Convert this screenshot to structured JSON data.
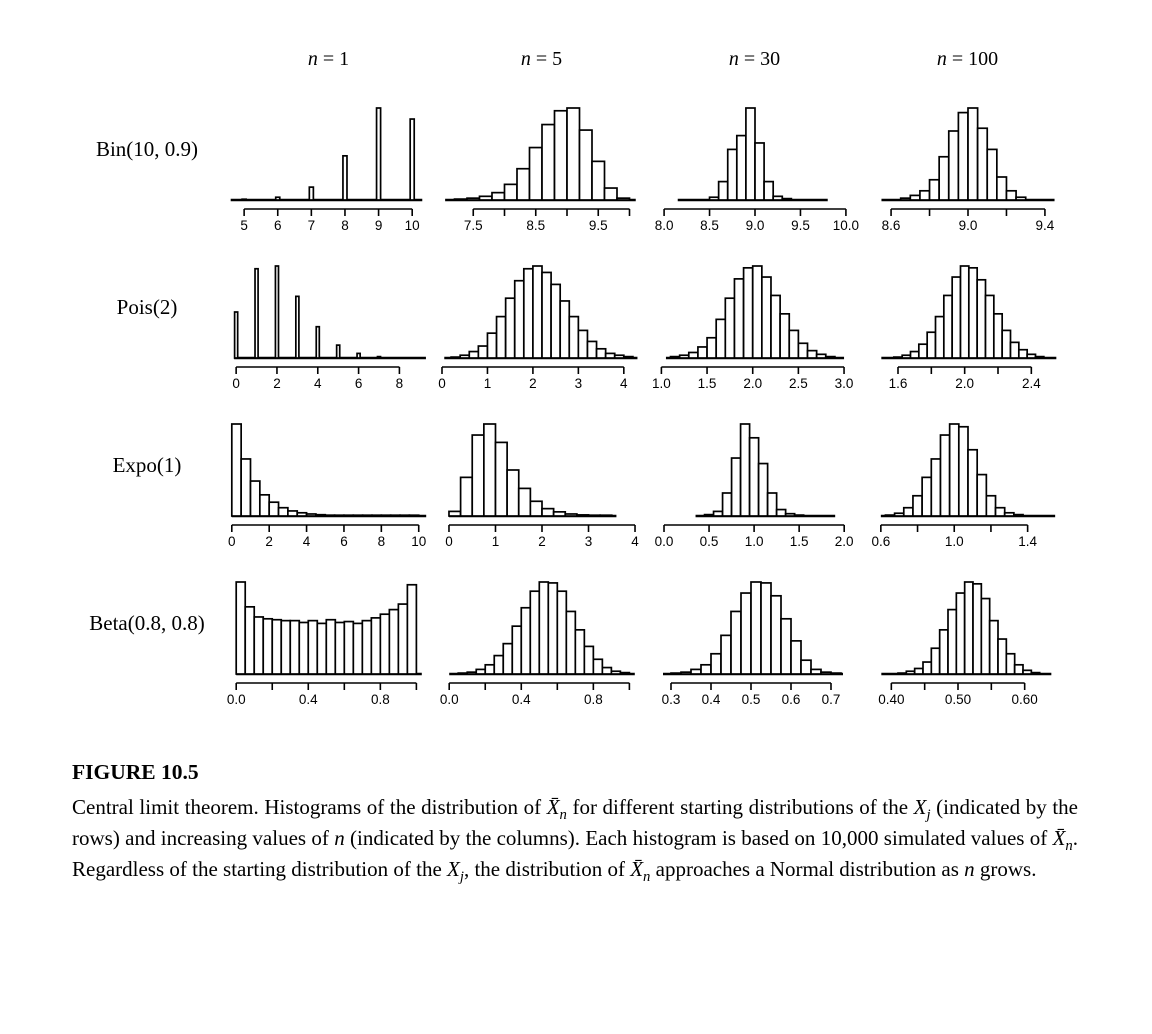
{
  "colors": {
    "ink": "#000000",
    "background": "#ffffff"
  },
  "figure": {
    "columns": [
      {
        "var": "n",
        "rest": "= 1"
      },
      {
        "var": "n",
        "rest": "= 5"
      },
      {
        "var": "n",
        "rest": "= 30"
      },
      {
        "var": "n",
        "rest": "= 100"
      }
    ],
    "rows": [
      {
        "label": "Bin(10, 0.9)"
      },
      {
        "label": "Pois(2)"
      },
      {
        "label": "Expo(1)"
      },
      {
        "label": "Beta(0.8, 0.8)"
      }
    ],
    "heights_note": "bar heights are relative frequencies scaled so the tallest bar in each panel equals 1"
  },
  "chart_data": [
    {
      "type": "bar",
      "row": "Bin(10, 0.9)",
      "col": "n = 1",
      "x0": 4.94,
      "stride": 1,
      "bw": 0.12,
      "heights": [
        0.005,
        0.03,
        0.14,
        0.48,
        1.0,
        0.88
      ],
      "baseline": [
        4.6,
        10.3
      ],
      "xlim": [
        4.55,
        10.5
      ],
      "ticks": [
        5,
        6,
        7,
        8,
        9,
        10
      ],
      "tick_labels": [
        "5",
        "6",
        "7",
        "8",
        "9",
        "10"
      ]
    },
    {
      "type": "bar",
      "row": "Bin(10, 0.9)",
      "col": "n = 5",
      "x0": 7.2,
      "bw": 0.2,
      "heights": [
        0.01,
        0.02,
        0.04,
        0.08,
        0.17,
        0.34,
        0.57,
        0.82,
        0.97,
        1.0,
        0.76,
        0.42,
        0.13,
        0.02
      ],
      "baseline": [
        7.05,
        10.1
      ],
      "xlim": [
        7.0,
        10.2
      ],
      "ticks": [
        7.5,
        8.0,
        8.5,
        9.0,
        9.5,
        10.0
      ],
      "tick_labels": [
        "7.5",
        "",
        "8.5",
        "",
        "9.5",
        ""
      ]
    },
    {
      "type": "bar",
      "row": "Bin(10, 0.9)",
      "col": "n = 30",
      "x0": 8.5,
      "bw": 0.1,
      "heights": [
        0.03,
        0.2,
        0.55,
        0.7,
        1.0,
        0.62,
        0.2,
        0.04,
        0.015
      ],
      "baseline": [
        8.15,
        9.8
      ],
      "xlim": [
        7.9,
        10.1
      ],
      "ticks": [
        8.0,
        8.5,
        9.0,
        9.5,
        10.0
      ],
      "tick_labels": [
        "8.0",
        "8.5",
        "9.0",
        "9.5",
        "10.0"
      ]
    },
    {
      "type": "bar",
      "row": "Bin(10, 0.9)",
      "col": "n = 100",
      "x0": 8.65,
      "bw": 0.05,
      "heights": [
        0.02,
        0.05,
        0.1,
        0.22,
        0.47,
        0.75,
        0.95,
        1.0,
        0.78,
        0.55,
        0.25,
        0.1,
        0.03
      ],
      "baseline": [
        8.55,
        9.45
      ],
      "xlim": [
        8.48,
        9.52
      ],
      "ticks": [
        8.6,
        8.8,
        9.0,
        9.2,
        9.4
      ],
      "tick_labels": [
        "8.6",
        "",
        "9.0",
        "",
        "9.4"
      ]
    },
    {
      "type": "bar",
      "row": "Pois(2)",
      "col": "n = 1",
      "x0": -0.075,
      "stride": 1,
      "bw": 0.15,
      "heights": [
        0.5,
        0.97,
        1.0,
        0.67,
        0.34,
        0.14,
        0.05,
        0.015
      ],
      "baseline": [
        -0.1,
        9.3
      ],
      "xlim": [
        -0.35,
        9.45
      ],
      "ticks": [
        0,
        2,
        4,
        6,
        8
      ],
      "tick_labels": [
        "0",
        "2",
        "4",
        "6",
        "8"
      ]
    },
    {
      "type": "bar",
      "row": "Pois(2)",
      "col": "n = 5",
      "x0": 0.2,
      "bw": 0.2,
      "heights": [
        0.01,
        0.03,
        0.07,
        0.13,
        0.27,
        0.45,
        0.65,
        0.84,
        0.97,
        1.0,
        0.93,
        0.8,
        0.62,
        0.45,
        0.3,
        0.18,
        0.1,
        0.05,
        0.03,
        0.015
      ],
      "baseline": [
        0.05,
        4.3
      ],
      "xlim": [
        0,
        4.4
      ],
      "ticks": [
        0,
        1,
        2,
        3,
        4
      ],
      "tick_labels": [
        "0",
        "1",
        "2",
        "3",
        "4"
      ]
    },
    {
      "type": "bar",
      "row": "Pois(2)",
      "col": "n = 30",
      "x0": 1.1,
      "bw": 0.1,
      "heights": [
        0.015,
        0.03,
        0.06,
        0.12,
        0.22,
        0.42,
        0.65,
        0.86,
        0.98,
        1.0,
        0.88,
        0.68,
        0.48,
        0.3,
        0.16,
        0.08,
        0.04,
        0.015
      ],
      "baseline": [
        1.05,
        3.0
      ],
      "xlim": [
        0.93,
        3.12
      ],
      "ticks": [
        1.0,
        1.5,
        2.0,
        2.5,
        3.0
      ],
      "tick_labels": [
        "1.0",
        "1.5",
        "2.0",
        "2.5",
        "3.0"
      ]
    },
    {
      "type": "bar",
      "row": "Pois(2)",
      "col": "n = 100",
      "x0": 1.575,
      "bw": 0.05,
      "heights": [
        0.01,
        0.03,
        0.07,
        0.15,
        0.28,
        0.45,
        0.68,
        0.88,
        1.0,
        0.98,
        0.85,
        0.68,
        0.48,
        0.3,
        0.17,
        0.09,
        0.04,
        0.015
      ],
      "baseline": [
        1.5,
        2.55
      ],
      "xlim": [
        1.42,
        2.62
      ],
      "ticks": [
        1.6,
        1.8,
        2.0,
        2.2,
        2.4
      ],
      "tick_labels": [
        "1.6",
        "",
        "2.0",
        "",
        "2.4"
      ]
    },
    {
      "type": "bar",
      "row": "Expo(1)",
      "col": "n = 1",
      "x0": 0,
      "bw": 0.5,
      "heights": [
        1.0,
        0.62,
        0.38,
        0.23,
        0.15,
        0.09,
        0.055,
        0.035,
        0.022,
        0.014,
        0.009,
        0.006,
        0.004,
        0.003,
        0.002,
        0.002,
        0.001,
        0.001,
        0.001,
        0.001
      ],
      "baseline": [
        0,
        10.4
      ],
      "xlim": [
        -0.15,
        10.55
      ],
      "ticks": [
        0,
        2,
        4,
        6,
        8,
        10
      ],
      "tick_labels": [
        "0",
        "2",
        "4",
        "6",
        "8",
        "10"
      ]
    },
    {
      "type": "bar",
      "row": "Expo(1)",
      "col": "n = 5",
      "x0": 0,
      "bw": 0.25,
      "heights": [
        0.05,
        0.42,
        0.88,
        1.0,
        0.8,
        0.5,
        0.3,
        0.16,
        0.08,
        0.045,
        0.022,
        0.012,
        0.006,
        0.003
      ],
      "baseline": [
        0,
        3.6
      ],
      "xlim": [
        -0.15,
        4.15
      ],
      "ticks": [
        0,
        1,
        2,
        3,
        4
      ],
      "tick_labels": [
        "0",
        "1",
        "2",
        "3",
        "4"
      ]
    },
    {
      "type": "bar",
      "row": "Expo(1)",
      "col": "n = 30",
      "x0": 0.45,
      "bw": 0.1,
      "heights": [
        0.015,
        0.05,
        0.25,
        0.63,
        1.0,
        0.85,
        0.57,
        0.25,
        0.07,
        0.025,
        0.01
      ],
      "baseline": [
        0.35,
        1.9
      ],
      "xlim": [
        -0.1,
        2.12
      ],
      "ticks": [
        0.0,
        0.5,
        1.0,
        1.5,
        2.0
      ],
      "tick_labels": [
        "0.0",
        "0.5",
        "1.0",
        "1.5",
        "2.0"
      ]
    },
    {
      "type": "bar",
      "row": "Expo(1)",
      "col": "n = 100",
      "x0": 0.625,
      "bw": 0.05,
      "heights": [
        0.01,
        0.03,
        0.09,
        0.22,
        0.42,
        0.62,
        0.88,
        1.0,
        0.97,
        0.72,
        0.45,
        0.22,
        0.09,
        0.035,
        0.015
      ],
      "baseline": [
        0.6,
        1.55
      ],
      "xlim": [
        0.53,
        1.62
      ],
      "ticks": [
        0.6,
        0.8,
        1.0,
        1.2,
        1.4
      ],
      "tick_labels": [
        "0.6",
        "",
        "1.0",
        "",
        "1.4"
      ]
    },
    {
      "type": "bar",
      "row": "Beta(0.8, 0.8)",
      "col": "n = 1",
      "x0": 0,
      "bw": 0.05,
      "heights": [
        1.0,
        0.73,
        0.62,
        0.6,
        0.59,
        0.58,
        0.58,
        0.56,
        0.58,
        0.55,
        0.59,
        0.56,
        0.57,
        0.55,
        0.58,
        0.61,
        0.65,
        0.7,
        0.76,
        0.97
      ],
      "baseline": [
        0,
        1.03
      ],
      "xlim": [
        -0.04,
        1.07
      ],
      "ticks": [
        0.0,
        0.2,
        0.4,
        0.6,
        0.8,
        1.0
      ],
      "tick_labels": [
        "0.0",
        "",
        "0.4",
        "",
        "0.8",
        ""
      ]
    },
    {
      "type": "bar",
      "row": "Beta(0.8, 0.8)",
      "col": "n = 5",
      "x0": 0.05,
      "bw": 0.05,
      "heights": [
        0.01,
        0.02,
        0.05,
        0.1,
        0.2,
        0.33,
        0.52,
        0.72,
        0.9,
        1.0,
        0.99,
        0.9,
        0.68,
        0.48,
        0.3,
        0.16,
        0.07,
        0.03,
        0.015
      ],
      "baseline": [
        0,
        1.03
      ],
      "xlim": [
        -0.04,
        1.07
      ],
      "ticks": [
        0.0,
        0.2,
        0.4,
        0.6,
        0.8,
        1.0
      ],
      "tick_labels": [
        "0.0",
        "",
        "0.4",
        "",
        "0.8",
        ""
      ]
    },
    {
      "type": "bar",
      "row": "Beta(0.8, 0.8)",
      "col": "n = 30",
      "x0": 0.3,
      "bw": 0.025,
      "heights": [
        0.01,
        0.02,
        0.05,
        0.1,
        0.22,
        0.42,
        0.68,
        0.88,
        1.0,
        0.99,
        0.85,
        0.6,
        0.36,
        0.15,
        0.05,
        0.02,
        0.01
      ],
      "baseline": [
        0.28,
        0.73
      ],
      "xlim": [
        0.26,
        0.76
      ],
      "ticks": [
        0.3,
        0.4,
        0.5,
        0.6,
        0.7
      ],
      "tick_labels": [
        "0.3",
        "0.4",
        "0.5",
        "0.6",
        "0.7"
      ]
    },
    {
      "type": "bar",
      "row": "Beta(0.8, 0.8)",
      "col": "n = 100",
      "x0": 0.41,
      "bw": 0.0125,
      "heights": [
        0.01,
        0.03,
        0.06,
        0.13,
        0.28,
        0.48,
        0.7,
        0.88,
        1.0,
        0.98,
        0.82,
        0.58,
        0.38,
        0.22,
        0.1,
        0.04,
        0.015
      ],
      "baseline": [
        0.385,
        0.64
      ],
      "xlim": [
        0.365,
        0.665
      ],
      "ticks": [
        0.4,
        0.45,
        0.5,
        0.55,
        0.6
      ],
      "tick_labels": [
        "0.40",
        "",
        "0.50",
        "",
        "0.60"
      ]
    }
  ],
  "caption": {
    "title": "FIGURE 10.5",
    "text": "Central limit theorem. Histograms of the distribution of X̄n for different starting distributions of the Xj (indicated by the rows) and increasing values of n (indicated by the columns). Each histogram is based on 10,000 simulated values of X̄n. Regardless of the starting distribution of the Xj, the distribution of X̄n approaches a Normal distribution as n grows.",
    "parts": [
      {
        "t": "Central limit theorem. Histograms of the distribution of ",
        "s": "r"
      },
      {
        "t": "X̄",
        "s": "i"
      },
      {
        "t": "n",
        "s": "s"
      },
      {
        "t": " for different starting distributions of the ",
        "s": "r"
      },
      {
        "t": "X",
        "s": "i"
      },
      {
        "t": "j",
        "s": "s"
      },
      {
        "t": " (indicated by the rows) and increasing values of ",
        "s": "r"
      },
      {
        "t": "n",
        "s": "i"
      },
      {
        "t": " (indicated by the columns). Each histogram is based on 10,000 simulated values of ",
        "s": "r"
      },
      {
        "t": "X̄",
        "s": "i"
      },
      {
        "t": "n",
        "s": "s"
      },
      {
        "t": ". Regardless of the starting distribution of the ",
        "s": "r"
      },
      {
        "t": "X",
        "s": "i"
      },
      {
        "t": "j",
        "s": "s"
      },
      {
        "t": ", the distribution of ",
        "s": "r"
      },
      {
        "t": "X̄",
        "s": "i"
      },
      {
        "t": "n",
        "s": "s"
      },
      {
        "t": " approaches a Normal distribution as ",
        "s": "r"
      },
      {
        "t": "n",
        "s": "i"
      },
      {
        "t": " grows.",
        "s": "r"
      }
    ]
  }
}
